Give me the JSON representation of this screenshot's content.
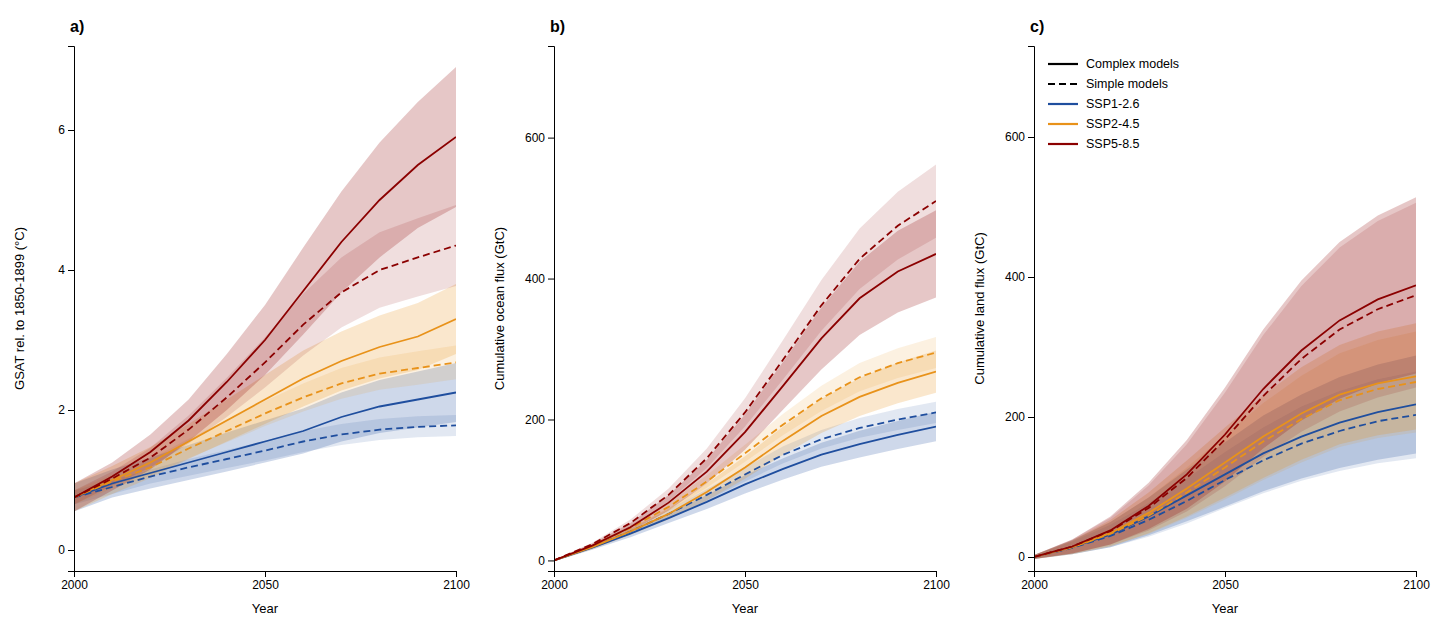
{
  "chart_data": [
    {
      "type": "line",
      "title": "a)",
      "xlabel": "Year",
      "ylabel": "GSAT rel. to 1850-1899 (°C)",
      "x": [
        2000,
        2010,
        2020,
        2030,
        2040,
        2050,
        2060,
        2070,
        2080,
        2090,
        2100
      ],
      "xlim": [
        2000,
        2100
      ],
      "xticks": [
        2000,
        2050,
        2100
      ],
      "ylim": [
        -0.3,
        7.2
      ],
      "yticks": [
        0,
        2,
        4,
        6
      ],
      "grid": false,
      "series": [
        {
          "color": "#1f4e9e",
          "line_style": "solid",
          "values": [
            0.75,
            0.95,
            1.1,
            1.25,
            1.4,
            1.55,
            1.7,
            1.9,
            2.05,
            2.15,
            2.25
          ],
          "std": [
            0.2,
            0.2,
            0.22,
            0.25,
            0.28,
            0.3,
            0.32,
            0.35,
            0.38,
            0.4,
            0.42
          ]
        },
        {
          "color": "#1f4e9e",
          "line_style": "dashed",
          "values": [
            0.75,
            0.9,
            1.05,
            1.18,
            1.3,
            1.42,
            1.55,
            1.65,
            1.72,
            1.76,
            1.78
          ],
          "std": [
            0.1,
            0.1,
            0.1,
            0.12,
            0.13,
            0.14,
            0.15,
            0.15,
            0.15,
            0.15,
            0.15
          ]
        },
        {
          "color": "#e8921a",
          "line_style": "solid",
          "values": [
            0.75,
            1.0,
            1.25,
            1.55,
            1.85,
            2.15,
            2.45,
            2.7,
            2.9,
            3.05,
            3.3
          ],
          "std": [
            0.2,
            0.2,
            0.22,
            0.25,
            0.3,
            0.35,
            0.4,
            0.42,
            0.45,
            0.48,
            0.5
          ]
        },
        {
          "color": "#e8921a",
          "line_style": "dashed",
          "values": [
            0.75,
            0.98,
            1.18,
            1.45,
            1.7,
            1.95,
            2.18,
            2.38,
            2.52,
            2.6,
            2.68
          ],
          "std": [
            0.1,
            0.1,
            0.12,
            0.14,
            0.16,
            0.18,
            0.2,
            0.22,
            0.23,
            0.24,
            0.24
          ]
        },
        {
          "color": "#8b0000",
          "line_style": "solid",
          "values": [
            0.75,
            1.05,
            1.4,
            1.85,
            2.4,
            3.0,
            3.7,
            4.4,
            5.0,
            5.5,
            5.9
          ],
          "std": [
            0.2,
            0.2,
            0.25,
            0.3,
            0.4,
            0.5,
            0.62,
            0.72,
            0.82,
            0.9,
            1.0
          ]
        },
        {
          "color": "#8b0000",
          "line_style": "dashed",
          "values": [
            0.75,
            1.02,
            1.32,
            1.72,
            2.18,
            2.68,
            3.22,
            3.68,
            4.0,
            4.18,
            4.35
          ],
          "std": [
            0.1,
            0.1,
            0.14,
            0.2,
            0.28,
            0.36,
            0.44,
            0.5,
            0.54,
            0.56,
            0.58
          ]
        }
      ]
    },
    {
      "type": "line",
      "title": "b)",
      "xlabel": "Year",
      "ylabel": "Cumulative ocean flux (GtC)",
      "x": [
        2000,
        2010,
        2020,
        2030,
        2040,
        2050,
        2060,
        2070,
        2080,
        2090,
        2100
      ],
      "xlim": [
        2000,
        2100
      ],
      "xticks": [
        2000,
        2050,
        2100
      ],
      "ylim": [
        -15,
        730
      ],
      "yticks": [
        0,
        200,
        400,
        600
      ],
      "grid": false,
      "series": [
        {
          "color": "#1f4e9e",
          "line_style": "solid",
          "values": [
            0,
            18,
            38,
            60,
            83,
            108,
            130,
            150,
            165,
            178,
            190
          ],
          "std": [
            1,
            3,
            5,
            7,
            10,
            13,
            15,
            17,
            19,
            20,
            21
          ]
        },
        {
          "color": "#1f4e9e",
          "line_style": "dashed",
          "values": [
            0,
            19,
            41,
            66,
            93,
            122,
            150,
            172,
            188,
            200,
            210
          ],
          "std": [
            1,
            2,
            4,
            6,
            8,
            10,
            12,
            13,
            14,
            15,
            15
          ]
        },
        {
          "color": "#e8921a",
          "line_style": "solid",
          "values": [
            0,
            19,
            41,
            66,
            97,
            132,
            170,
            205,
            232,
            252,
            268
          ],
          "std": [
            1,
            3,
            5,
            8,
            12,
            16,
            20,
            24,
            27,
            29,
            30
          ]
        },
        {
          "color": "#e8921a",
          "line_style": "dashed",
          "values": [
            0,
            21,
            46,
            76,
            112,
            152,
            193,
            230,
            260,
            280,
            295
          ],
          "std": [
            1,
            2,
            4,
            6,
            9,
            12,
            15,
            18,
            20,
            21,
            22
          ]
        },
        {
          "color": "#8b0000",
          "line_style": "solid",
          "values": [
            0,
            21,
            47,
            82,
            126,
            182,
            248,
            315,
            372,
            410,
            435
          ],
          "std": [
            1,
            3,
            6,
            11,
            17,
            25,
            34,
            44,
            52,
            58,
            62
          ]
        },
        {
          "color": "#8b0000",
          "line_style": "dashed",
          "values": [
            0,
            23,
            53,
            93,
            145,
            210,
            285,
            362,
            428,
            475,
            510
          ],
          "std": [
            1,
            2,
            5,
            9,
            14,
            20,
            28,
            36,
            43,
            48,
            52
          ]
        }
      ]
    },
    {
      "type": "line",
      "title": "c)",
      "xlabel": "Year",
      "ylabel": "Cumulative land flux (GtC)",
      "x": [
        2000,
        2010,
        2020,
        2030,
        2040,
        2050,
        2060,
        2070,
        2080,
        2090,
        2100
      ],
      "xlim": [
        2000,
        2100
      ],
      "xticks": [
        2000,
        2050,
        2100
      ],
      "ylim": [
        -20,
        730
      ],
      "yticks": [
        0,
        200,
        400,
        600
      ],
      "grid": false,
      "series": [
        {
          "color": "#1f4e9e",
          "line_style": "solid",
          "values": [
            0,
            14,
            32,
            58,
            88,
            118,
            148,
            172,
            192,
            207,
            218
          ],
          "std": [
            3,
            10,
            18,
            27,
            37,
            46,
            54,
            60,
            65,
            68,
            70
          ]
        },
        {
          "color": "#1f4e9e",
          "line_style": "dashed",
          "values": [
            0,
            13,
            30,
            53,
            80,
            110,
            138,
            162,
            180,
            194,
            203
          ],
          "std": [
            3,
            9,
            16,
            24,
            32,
            40,
            47,
            53,
            57,
            60,
            62
          ]
        },
        {
          "color": "#e8921a",
          "line_style": "solid",
          "values": [
            0,
            14,
            34,
            63,
            98,
            135,
            172,
            205,
            232,
            248,
            258
          ],
          "std": [
            3,
            10,
            19,
            29,
            40,
            50,
            59,
            66,
            71,
            74,
            76
          ]
        },
        {
          "color": "#e8921a",
          "line_style": "dashed",
          "values": [
            0,
            14,
            33,
            59,
            92,
            128,
            165,
            197,
            224,
            240,
            250
          ],
          "std": [
            3,
            9,
            17,
            26,
            36,
            46,
            55,
            62,
            67,
            70,
            72
          ]
        },
        {
          "color": "#8b0000",
          "line_style": "solid",
          "values": [
            0,
            15,
            38,
            73,
            118,
            175,
            240,
            295,
            338,
            368,
            388
          ],
          "std": [
            3,
            10,
            20,
            33,
            49,
            67,
            85,
            100,
            112,
            120,
            126
          ]
        },
        {
          "color": "#8b0000",
          "line_style": "dashed",
          "values": [
            0,
            15,
            37,
            70,
            113,
            168,
            230,
            283,
            325,
            354,
            374
          ],
          "std": [
            3,
            10,
            19,
            32,
            48,
            67,
            87,
            104,
            117,
            126,
            132
          ]
        }
      ],
      "legend": "upper left",
      "legend_entries": [
        {
          "label": "Complex models",
          "color": "#000000",
          "line_style": "solid"
        },
        {
          "label": "Simple models",
          "color": "#000000",
          "line_style": "dashed"
        },
        {
          "label": "SSP1-2.6",
          "color": "#1f4e9e",
          "line_style": "solid"
        },
        {
          "label": "SSP2-4.5",
          "color": "#e8921a",
          "line_style": "solid"
        },
        {
          "label": "SSP5-8.5",
          "color": "#8b0000",
          "line_style": "solid"
        }
      ]
    }
  ]
}
